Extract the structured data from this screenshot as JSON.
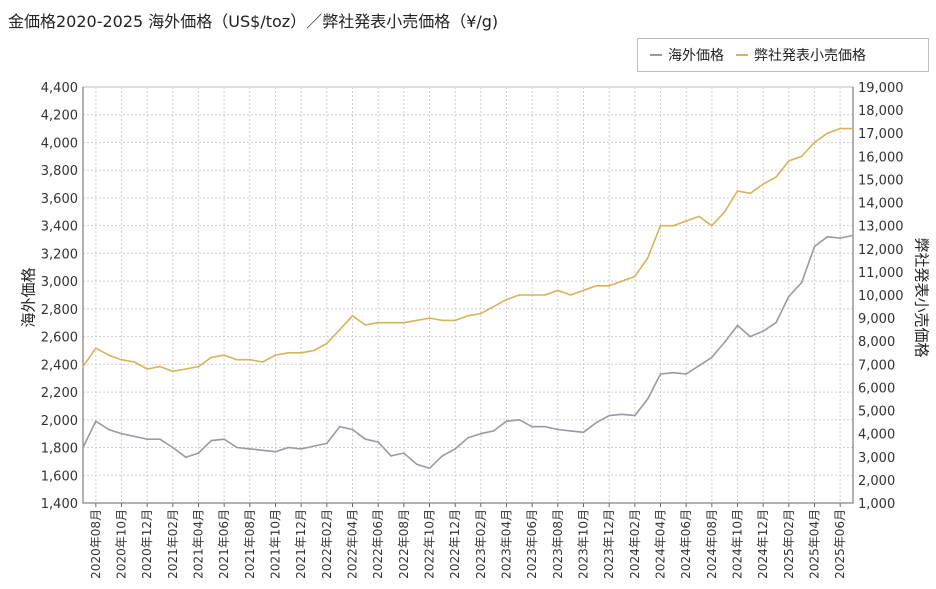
{
  "title": "金価格2020-2025 海外価格（US$/toz）／弊社発表小売価格（¥/g)",
  "colors": {
    "overseas": "#9a9aa2",
    "retail": "#d7b35a",
    "grid": "#cfcfcf",
    "axis": "#666666"
  },
  "chart_data": {
    "type": "line",
    "title": "金価格2020-2025 海外価格（US$/toz）／弊社発表小売価格（¥/g)",
    "ylabel": "海外価格",
    "y2label": "弊社発表小売価格",
    "ylim": [
      1400,
      4400
    ],
    "y2lim": [
      1000,
      19000
    ],
    "legend_position": "top-right",
    "grid": true,
    "y_ticks": [
      "1,400",
      "1,600",
      "1,800",
      "2,000",
      "2,200",
      "2,400",
      "2,600",
      "2,800",
      "3,000",
      "3,200",
      "3,400",
      "3,600",
      "3,800",
      "4,000",
      "4,200",
      "4,400"
    ],
    "y2_ticks": [
      "1,000",
      "2,000",
      "3,000",
      "4,000",
      "5,000",
      "6,000",
      "7,000",
      "8,000",
      "9,000",
      "10,000",
      "11,000",
      "12,000",
      "13,000",
      "14,000",
      "15,000",
      "16,000",
      "17,000",
      "18,000",
      "19,000"
    ],
    "x_ticks": [
      "2020年08月",
      "2020年10月",
      "2020年12月",
      "2021年02月",
      "2021年04月",
      "2021年06月",
      "2021年08月",
      "2021年10月",
      "2021年12月",
      "2022年02月",
      "2022年04月",
      "2022年06月",
      "2022年08月",
      "2022年10月",
      "2022年12月",
      "2023年02月",
      "2023年04月",
      "2023年06月",
      "2023年08月",
      "2023年10月",
      "2023年12月",
      "2024年02月",
      "2024年04月",
      "2024年06月",
      "2024年08月",
      "2024年10月",
      "2024年12月",
      "2025年02月",
      "2025年04月",
      "2025年06月"
    ],
    "x_range": [
      "2020-07",
      "2025-07"
    ],
    "series": [
      {
        "name": "海外価格",
        "axis": "left",
        "x": [
          "2020-07",
          "2020-08",
          "2020-09",
          "2020-10",
          "2020-11",
          "2020-12",
          "2021-01",
          "2021-02",
          "2021-03",
          "2021-04",
          "2021-05",
          "2021-06",
          "2021-07",
          "2021-08",
          "2021-09",
          "2021-10",
          "2021-11",
          "2021-12",
          "2022-01",
          "2022-02",
          "2022-03",
          "2022-04",
          "2022-05",
          "2022-06",
          "2022-07",
          "2022-08",
          "2022-09",
          "2022-10",
          "2022-11",
          "2022-12",
          "2023-01",
          "2023-02",
          "2023-03",
          "2023-04",
          "2023-05",
          "2023-06",
          "2023-07",
          "2023-08",
          "2023-09",
          "2023-10",
          "2023-11",
          "2023-12",
          "2024-01",
          "2024-02",
          "2024-03",
          "2024-04",
          "2024-05",
          "2024-06",
          "2024-07",
          "2024-08",
          "2024-09",
          "2024-10",
          "2024-11",
          "2024-12",
          "2025-01",
          "2025-02",
          "2025-03",
          "2025-04",
          "2025-05",
          "2025-06",
          "2025-07"
        ],
        "values": [
          1800,
          1990,
          1930,
          1900,
          1880,
          1860,
          1860,
          1800,
          1730,
          1760,
          1850,
          1860,
          1800,
          1790,
          1780,
          1770,
          1800,
          1790,
          1810,
          1830,
          1950,
          1930,
          1860,
          1840,
          1740,
          1760,
          1680,
          1650,
          1740,
          1790,
          1870,
          1900,
          1920,
          1990,
          2000,
          1950,
          1950,
          1930,
          1920,
          1910,
          1980,
          2030,
          2040,
          2030,
          2150,
          2330,
          2340,
          2330,
          2390,
          2450,
          2560,
          2680,
          2600,
          2640,
          2700,
          2890,
          2990,
          3250,
          3320,
          3310,
          3330
        ]
      },
      {
        "name": "弊社発表小売価格",
        "axis": "right",
        "x": [
          "2020-07",
          "2020-08",
          "2020-09",
          "2020-10",
          "2020-11",
          "2020-12",
          "2021-01",
          "2021-02",
          "2021-03",
          "2021-04",
          "2021-05",
          "2021-06",
          "2021-07",
          "2021-08",
          "2021-09",
          "2021-10",
          "2021-11",
          "2021-12",
          "2022-01",
          "2022-02",
          "2022-03",
          "2022-04",
          "2022-05",
          "2022-06",
          "2022-07",
          "2022-08",
          "2022-09",
          "2022-10",
          "2022-11",
          "2022-12",
          "2023-01",
          "2023-02",
          "2023-03",
          "2023-04",
          "2023-05",
          "2023-06",
          "2023-07",
          "2023-08",
          "2023-09",
          "2023-10",
          "2023-11",
          "2023-12",
          "2024-01",
          "2024-02",
          "2024-03",
          "2024-04",
          "2024-05",
          "2024-06",
          "2024-07",
          "2024-08",
          "2024-09",
          "2024-10",
          "2024-11",
          "2024-12",
          "2025-01",
          "2025-02",
          "2025-03",
          "2025-04",
          "2025-05",
          "2025-06",
          "2025-07"
        ],
        "values": [
          6900,
          7700,
          7400,
          7200,
          7100,
          6800,
          6900,
          6700,
          6800,
          6900,
          7300,
          7400,
          7200,
          7200,
          7100,
          7400,
          7500,
          7500,
          7600,
          7900,
          8500,
          9100,
          8700,
          8800,
          8800,
          8800,
          8900,
          9000,
          8900,
          8900,
          9100,
          9200,
          9500,
          9800,
          10000,
          10000,
          10000,
          10200,
          10000,
          10200,
          10400,
          10400,
          10600,
          10800,
          11600,
          13000,
          13000,
          13200,
          13400,
          13000,
          13600,
          14500,
          14400,
          14800,
          15100,
          15800,
          16000,
          16600,
          17000,
          17200,
          17200
        ]
      }
    ]
  }
}
